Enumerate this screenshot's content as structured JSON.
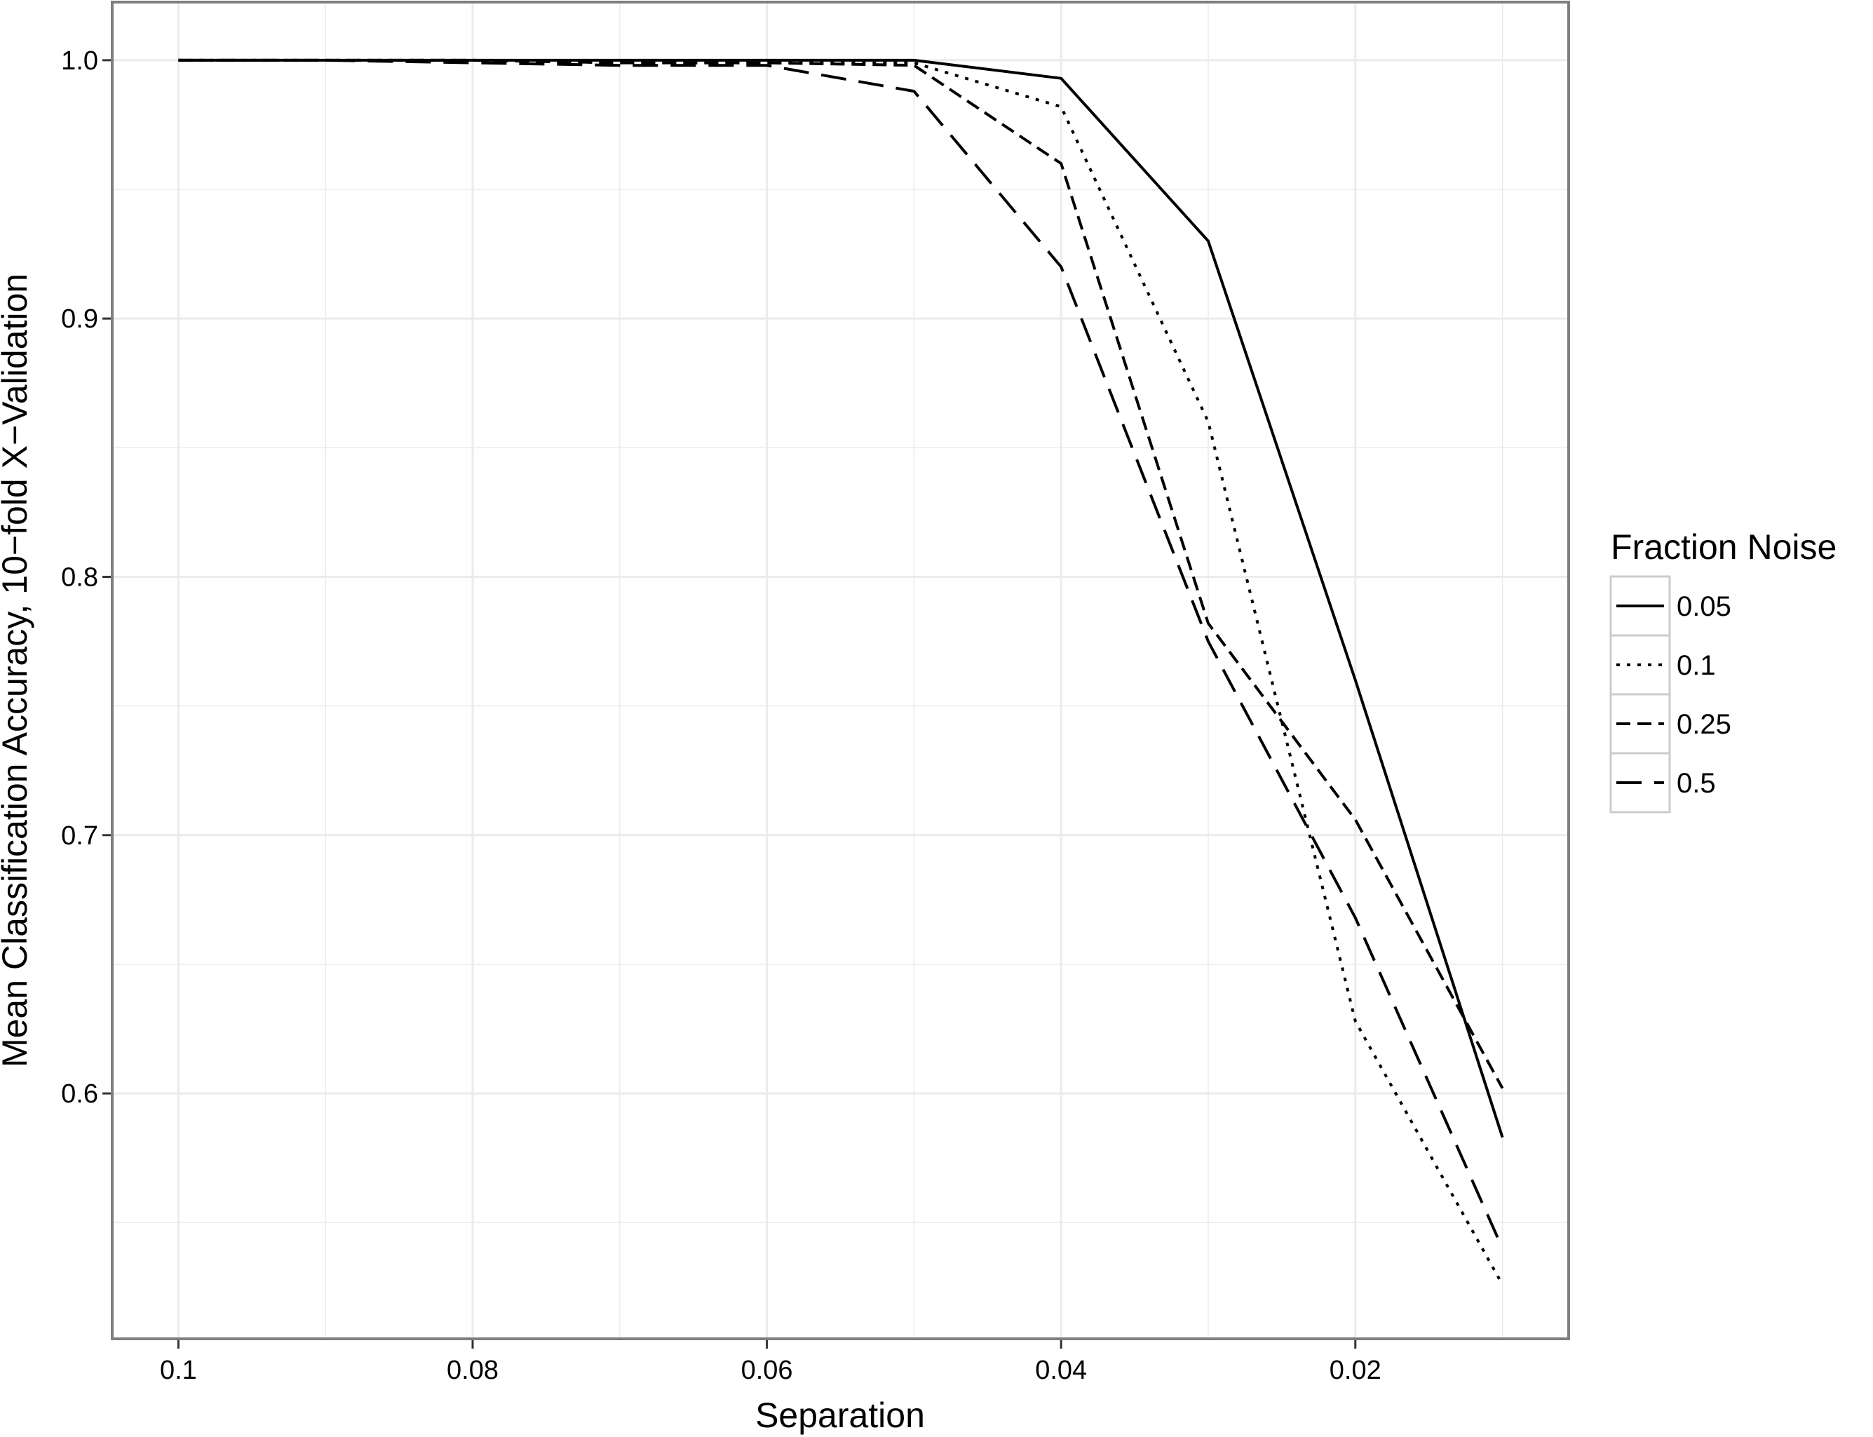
{
  "chart_data": {
    "type": "line",
    "title": "",
    "xlabel": "Separation",
    "ylabel": "Mean Classification Accuracy, 10−fold X−Validation",
    "x_reversed": true,
    "xlim": [
      0.1045,
      0.0055
    ],
    "ylim": [
      0.505,
      1.0225
    ],
    "x_ticks": [
      0.1,
      0.08,
      0.06,
      0.04,
      0.02
    ],
    "x_tick_labels": [
      "0.1",
      "0.08",
      "0.06",
      "0.04",
      "0.02"
    ],
    "y_ticks": [
      0.6,
      0.7,
      0.8,
      0.9,
      1.0
    ],
    "y_tick_labels": [
      "0.6",
      "0.7",
      "0.8",
      "0.9",
      "1.0"
    ],
    "grid": true,
    "legend": {
      "title": "Fraction Noise",
      "position": "right"
    },
    "x": [
      0.1,
      0.09,
      0.08,
      0.07,
      0.06,
      0.05,
      0.04,
      0.03,
      0.02,
      0.01
    ],
    "series": [
      {
        "name": "0.05",
        "dash": "solid",
        "values": [
          1.0,
          1.0,
          1.0,
          1.0,
          1.0,
          1.0,
          0.993,
          0.93,
          0.76,
          0.583
        ]
      },
      {
        "name": "0.1",
        "dash": "dotted",
        "values": [
          1.0,
          1.0,
          1.0,
          0.999,
          0.999,
          0.999,
          0.982,
          0.86,
          0.628,
          0.526
        ]
      },
      {
        "name": "0.25",
        "dash": "dashed",
        "values": [
          1.0,
          1.0,
          1.0,
          0.999,
          0.999,
          0.998,
          0.96,
          0.782,
          0.706,
          0.602
        ]
      },
      {
        "name": "0.5",
        "dash": "longdash",
        "values": [
          1.0,
          1.0,
          0.999,
          0.998,
          0.998,
          0.988,
          0.92,
          0.775,
          0.668,
          0.54
        ]
      }
    ],
    "colors": {
      "line": "#000000",
      "grid": "#ebebeb",
      "panel_border": "#7f7f7f",
      "legend_key_border": "#cccccc"
    }
  }
}
